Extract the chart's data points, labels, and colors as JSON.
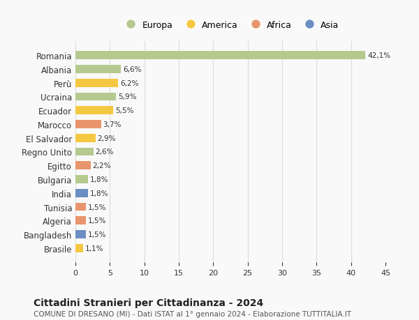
{
  "countries": [
    "Romania",
    "Albania",
    "Perù",
    "Ucraina",
    "Ecuador",
    "Marocco",
    "El Salvador",
    "Regno Unito",
    "Egitto",
    "Bulgaria",
    "India",
    "Tunisia",
    "Algeria",
    "Bangladesh",
    "Brasile"
  ],
  "values": [
    42.1,
    6.6,
    6.2,
    5.9,
    5.5,
    3.7,
    2.9,
    2.6,
    2.2,
    1.8,
    1.8,
    1.5,
    1.5,
    1.5,
    1.1
  ],
  "labels": [
    "42,1%",
    "6,6%",
    "6,2%",
    "5,9%",
    "5,5%",
    "3,7%",
    "2,9%",
    "2,6%",
    "2,2%",
    "1,8%",
    "1,8%",
    "1,5%",
    "1,5%",
    "1,5%",
    "1,1%"
  ],
  "colors": [
    "#b5c98e",
    "#b5c98e",
    "#f5c842",
    "#b5c98e",
    "#f5c842",
    "#e8956d",
    "#f5c842",
    "#b5c98e",
    "#e8956d",
    "#b5c98e",
    "#6b8fc2",
    "#e8956d",
    "#e8956d",
    "#6b8fc2",
    "#f5c842"
  ],
  "legend_labels": [
    "Europa",
    "America",
    "Africa",
    "Asia"
  ],
  "legend_colors": [
    "#b5c98e",
    "#f5c842",
    "#e8956d",
    "#6b8fc2"
  ],
  "title": "Cittadini Stranieri per Cittadinanza - 2024",
  "subtitle": "COMUNE DI DRESANO (MI) - Dati ISTAT al 1° gennaio 2024 - Elaborazione TUTTITALIA.IT",
  "xlim": [
    0,
    45
  ],
  "xticks": [
    0,
    5,
    10,
    15,
    20,
    25,
    30,
    35,
    40,
    45
  ],
  "background_color": "#f9f9f9",
  "grid_color": "#dddddd",
  "bar_height": 0.6
}
